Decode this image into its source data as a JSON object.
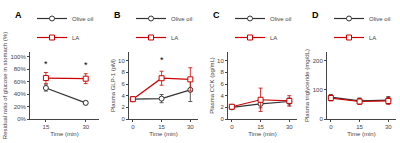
{
  "chart_data": [
    {
      "type": "line",
      "title": "A",
      "xlabel": "Time (min)",
      "ylabel": "Residual ratio of glucose in stomach (%)",
      "x": [
        15,
        30
      ],
      "xlim": [
        9,
        35
      ],
      "xticks": [
        15,
        30
      ],
      "ylim": [
        0,
        108
      ],
      "yticks": [
        {
          "value": 0,
          "label": "0%"
        },
        {
          "value": 20,
          "label": "20%"
        },
        {
          "value": 40,
          "label": "40%"
        },
        {
          "value": 60,
          "label": "60%"
        },
        {
          "value": 80,
          "label": "80%"
        },
        {
          "value": 100,
          "label": "100%"
        }
      ],
      "grid": false,
      "legend": "upper right",
      "series": [
        {
          "name": "Olive oil",
          "color": "#333333",
          "marker": "circle",
          "line_style": "solid",
          "values": [
            50,
            26
          ],
          "error": [
            5,
            3
          ]
        },
        {
          "name": "LA",
          "color": "#cc0000",
          "marker": "square",
          "line_style": "solid",
          "values": [
            66,
            65
          ],
          "error": [
            9,
            8
          ]
        }
      ],
      "annotations": [
        {
          "text": "*",
          "x": 15,
          "y": 77
        },
        {
          "text": "*",
          "x": 30,
          "y": 76
        }
      ]
    },
    {
      "type": "line",
      "title": "B",
      "xlabel": "Time (min)",
      "ylabel": "Plasma GLP-1 (pM)",
      "x": [
        0,
        15,
        30
      ],
      "xlim": [
        -2,
        34
      ],
      "xticks": [
        0,
        15,
        30
      ],
      "ylim": [
        0,
        11.5
      ],
      "yticks": [
        0,
        2,
        4,
        6,
        8,
        10
      ],
      "grid": false,
      "legend": "upper right",
      "series": [
        {
          "name": "Olive oil",
          "color": "#333333",
          "marker": "circle",
          "line_style": "solid",
          "values": [
            3.4,
            3.5,
            5.0
          ],
          "error": [
            0.4,
            0.7,
            2.0
          ]
        },
        {
          "name": "LA",
          "color": "#cc0000",
          "marker": "square",
          "line_style": "solid",
          "values": [
            3.4,
            7.0,
            6.8
          ],
          "error": [
            0.4,
            1.2,
            2.0
          ]
        }
      ],
      "annotations": [
        {
          "text": "*",
          "x": 15,
          "y": 9.0
        }
      ]
    },
    {
      "type": "line",
      "title": "C",
      "xlabel": "Time (min)",
      "ylabel": "Plasma CCK (pg/mL)",
      "x": [
        0,
        15,
        30
      ],
      "xlim": [
        -2,
        34
      ],
      "xticks": [
        0,
        15,
        30
      ],
      "ylim": [
        0,
        11.5
      ],
      "yticks": [
        0,
        2,
        4,
        6,
        8,
        10
      ],
      "grid": false,
      "legend": "upper right",
      "series": [
        {
          "name": "Olive oil",
          "color": "#333333",
          "marker": "circle",
          "line_style": "solid",
          "values": [
            2.0,
            2.6,
            3.0
          ],
          "error": [
            0.3,
            0.7,
            0.6
          ]
        },
        {
          "name": "LA",
          "color": "#cc0000",
          "marker": "square",
          "line_style": "solid",
          "values": [
            2.1,
            3.3,
            3.1
          ],
          "error": [
            0.4,
            2.0,
            0.9
          ]
        }
      ]
    },
    {
      "type": "line",
      "title": "D",
      "xlabel": "Time (min)",
      "ylabel": "Plasma triglyceride (mg/dL)",
      "x": [
        0,
        15,
        30
      ],
      "xlim": [
        -2,
        34
      ],
      "xticks": [
        0,
        15,
        30
      ],
      "ylim": [
        0,
        230
      ],
      "yticks": [
        0,
        100,
        200
      ],
      "grid": false,
      "legend": "upper right",
      "series": [
        {
          "name": "Olive oil",
          "color": "#333333",
          "marker": "circle",
          "line_style": "solid",
          "values": [
            75,
            62,
            65
          ],
          "error": [
            8,
            10,
            12
          ]
        },
        {
          "name": "LA",
          "color": "#cc0000",
          "marker": "square",
          "line_style": "solid",
          "values": [
            72,
            60,
            62
          ],
          "error": [
            10,
            10,
            12
          ]
        }
      ]
    }
  ]
}
